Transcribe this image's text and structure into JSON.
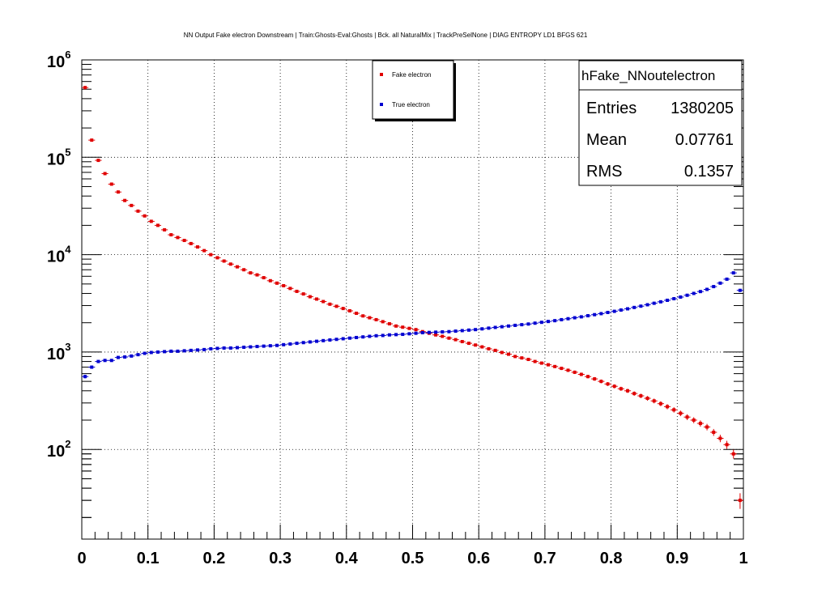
{
  "chart_data": {
    "type": "scatter",
    "title": "NN Output Fake electron Downstream | Train:Ghosts-Eval:Ghosts | Bck. all NaturalMix | TrackPreSelNone | DIAG ENTROPY LD1 BFGS 621",
    "xlabel": "",
    "ylabel": "",
    "xlim": [
      0,
      1
    ],
    "ylim": [
      12,
      1000000
    ],
    "y_scale": "log",
    "grid": true,
    "x_ticks": [
      "0",
      "0.1",
      "0.2",
      "0.3",
      "0.4",
      "0.5",
      "0.6",
      "0.7",
      "0.8",
      "0.9",
      "1"
    ],
    "y_ticks": [
      {
        "value": 100,
        "base": "10",
        "exp": "2"
      },
      {
        "value": 1000,
        "base": "10",
        "exp": "3"
      },
      {
        "value": 10000,
        "base": "10",
        "exp": "4"
      },
      {
        "value": 100000,
        "base": "10",
        "exp": "5"
      },
      {
        "value": 1000000,
        "base": "10",
        "exp": "6"
      }
    ],
    "legend": {
      "position": "top-center",
      "entries": [
        {
          "label": "Fake electron",
          "color": "#e00000"
        },
        {
          "label": "True electron",
          "color": "#0000d0"
        }
      ]
    },
    "stats_box": {
      "name": "hFake_NNoutelectron",
      "rows": [
        {
          "label": "Entries",
          "value": "1380205"
        },
        {
          "label": "Mean",
          "value": "0.07761"
        },
        {
          "label": "RMS",
          "value": "0.1357"
        }
      ]
    },
    "series": [
      {
        "name": "Fake electron",
        "color": "#e00000",
        "x": [
          0.005,
          0.015,
          0.025,
          0.035,
          0.045,
          0.055,
          0.065,
          0.075,
          0.085,
          0.095,
          0.105,
          0.115,
          0.125,
          0.135,
          0.145,
          0.155,
          0.165,
          0.175,
          0.185,
          0.195,
          0.205,
          0.215,
          0.225,
          0.235,
          0.245,
          0.255,
          0.265,
          0.275,
          0.285,
          0.295,
          0.305,
          0.315,
          0.325,
          0.335,
          0.345,
          0.355,
          0.365,
          0.375,
          0.385,
          0.395,
          0.405,
          0.415,
          0.425,
          0.435,
          0.445,
          0.455,
          0.465,
          0.475,
          0.485,
          0.495,
          0.505,
          0.515,
          0.525,
          0.535,
          0.545,
          0.555,
          0.565,
          0.575,
          0.585,
          0.595,
          0.605,
          0.615,
          0.625,
          0.635,
          0.645,
          0.655,
          0.665,
          0.675,
          0.685,
          0.695,
          0.705,
          0.715,
          0.725,
          0.735,
          0.745,
          0.755,
          0.765,
          0.775,
          0.785,
          0.795,
          0.805,
          0.815,
          0.825,
          0.835,
          0.845,
          0.855,
          0.865,
          0.875,
          0.885,
          0.895,
          0.905,
          0.915,
          0.925,
          0.935,
          0.945,
          0.955,
          0.965,
          0.975,
          0.985,
          0.995
        ],
        "y": [
          520000,
          150000,
          93000,
          68000,
          53000,
          44000,
          36000,
          32000,
          28000,
          25000,
          22000,
          20000,
          18000,
          16000,
          15000,
          14000,
          13000,
          12000,
          11000,
          10000,
          9300,
          8600,
          8000,
          7500,
          7000,
          6500,
          6200,
          5800,
          5400,
          5100,
          4800,
          4500,
          4200,
          3950,
          3700,
          3500,
          3300,
          3100,
          2950,
          2800,
          2650,
          2500,
          2350,
          2250,
          2150,
          2050,
          1950,
          1850,
          1800,
          1750,
          1700,
          1620,
          1560,
          1500,
          1450,
          1390,
          1340,
          1280,
          1230,
          1180,
          1130,
          1080,
          1040,
          990,
          950,
          900,
          870,
          840,
          800,
          770,
          740,
          710,
          680,
          650,
          620,
          590,
          560,
          530,
          500,
          470,
          445,
          420,
          400,
          375,
          355,
          335,
          315,
          295,
          275,
          255,
          235,
          215,
          200,
          185,
          170,
          150,
          130,
          112,
          90,
          30
        ]
      },
      {
        "name": "True electron",
        "color": "#0000d0",
        "x": [
          0.005,
          0.015,
          0.025,
          0.035,
          0.045,
          0.055,
          0.065,
          0.075,
          0.085,
          0.095,
          0.105,
          0.115,
          0.125,
          0.135,
          0.145,
          0.155,
          0.165,
          0.175,
          0.185,
          0.195,
          0.205,
          0.215,
          0.225,
          0.235,
          0.245,
          0.255,
          0.265,
          0.275,
          0.285,
          0.295,
          0.305,
          0.315,
          0.325,
          0.335,
          0.345,
          0.355,
          0.365,
          0.375,
          0.385,
          0.395,
          0.405,
          0.415,
          0.425,
          0.435,
          0.445,
          0.455,
          0.465,
          0.475,
          0.485,
          0.495,
          0.505,
          0.515,
          0.525,
          0.535,
          0.545,
          0.555,
          0.565,
          0.575,
          0.585,
          0.595,
          0.605,
          0.615,
          0.625,
          0.635,
          0.645,
          0.655,
          0.665,
          0.675,
          0.685,
          0.695,
          0.705,
          0.715,
          0.725,
          0.735,
          0.745,
          0.755,
          0.765,
          0.775,
          0.785,
          0.795,
          0.805,
          0.815,
          0.825,
          0.835,
          0.845,
          0.855,
          0.865,
          0.875,
          0.885,
          0.895,
          0.905,
          0.915,
          0.925,
          0.935,
          0.945,
          0.955,
          0.965,
          0.975,
          0.985,
          0.995
        ],
        "y": [
          560,
          700,
          800,
          820,
          820,
          880,
          890,
          910,
          940,
          970,
          990,
          1000,
          1010,
          1020,
          1020,
          1030,
          1040,
          1050,
          1060,
          1080,
          1090,
          1100,
          1100,
          1110,
          1120,
          1130,
          1140,
          1150,
          1160,
          1170,
          1190,
          1210,
          1230,
          1250,
          1270,
          1290,
          1310,
          1330,
          1350,
          1370,
          1390,
          1410,
          1430,
          1450,
          1470,
          1480,
          1500,
          1510,
          1520,
          1540,
          1560,
          1580,
          1590,
          1600,
          1610,
          1620,
          1640,
          1660,
          1680,
          1700,
          1730,
          1760,
          1790,
          1820,
          1850,
          1880,
          1910,
          1940,
          1980,
          2020,
          2060,
          2100,
          2150,
          2200,
          2250,
          2300,
          2360,
          2420,
          2480,
          2550,
          2620,
          2700,
          2780,
          2870,
          2960,
          3060,
          3170,
          3280,
          3400,
          3530,
          3670,
          3830,
          4000,
          4180,
          4400,
          4700,
          5100,
          5600,
          6500,
          4300
        ]
      }
    ]
  }
}
